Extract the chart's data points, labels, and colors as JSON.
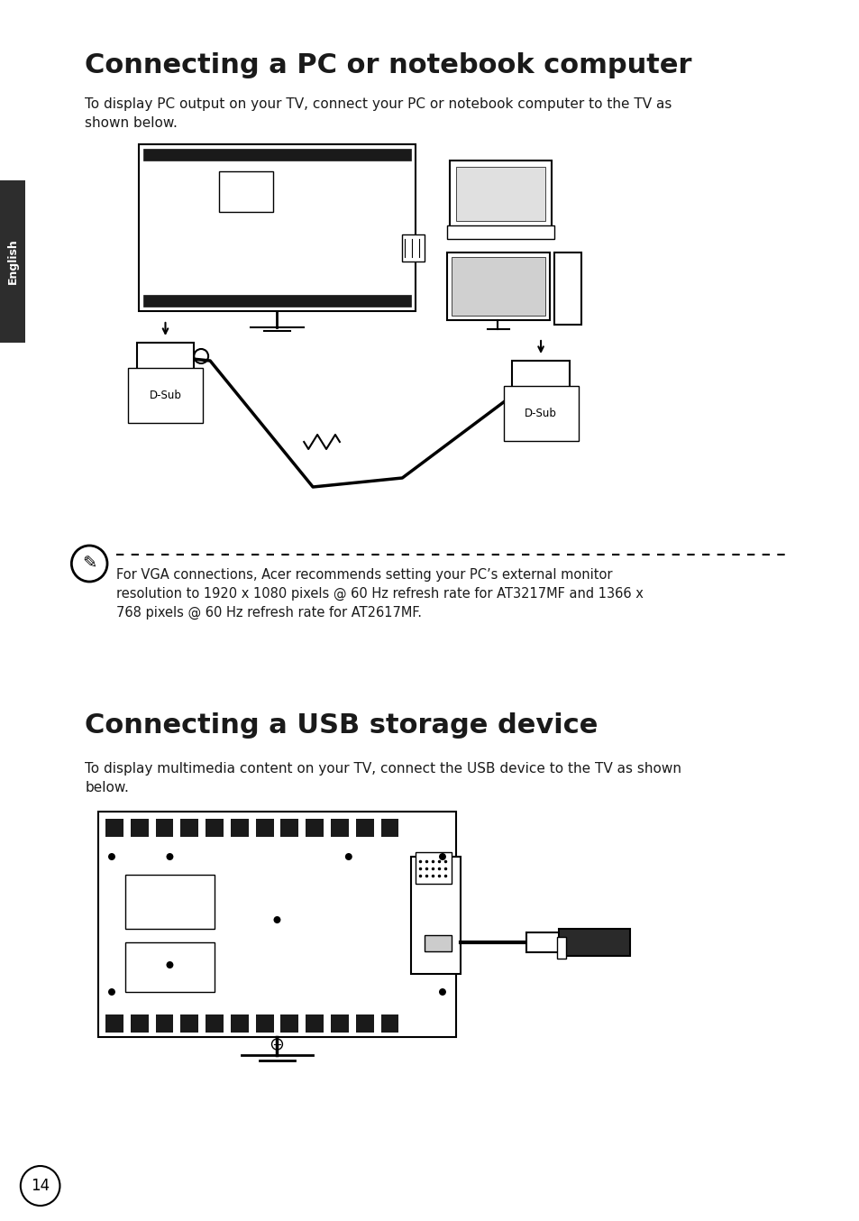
{
  "title1": "Connecting a PC or notebook computer",
  "subtitle1": "To display PC output on your TV, connect your PC or notebook computer to the TV as\nshown below.",
  "note_text": "For VGA connections, Acer recommends setting your PC’s external monitor\nresolution to 1920 x 1080 pixels @ 60 Hz refresh rate for AT3217MF and 1366 x\n768 pixels @ 60 Hz refresh rate for AT2617MF.",
  "title2": "Connecting a USB storage device",
  "subtitle2": "To display multimedia content on your TV, connect the USB device to the TV as shown\nbelow.",
  "page_number": "14",
  "tab_label": "English",
  "bg_color": "#ffffff",
  "text_color": "#1a1a1a",
  "tab_bg": "#2d2d2d",
  "tab_text": "#ffffff"
}
